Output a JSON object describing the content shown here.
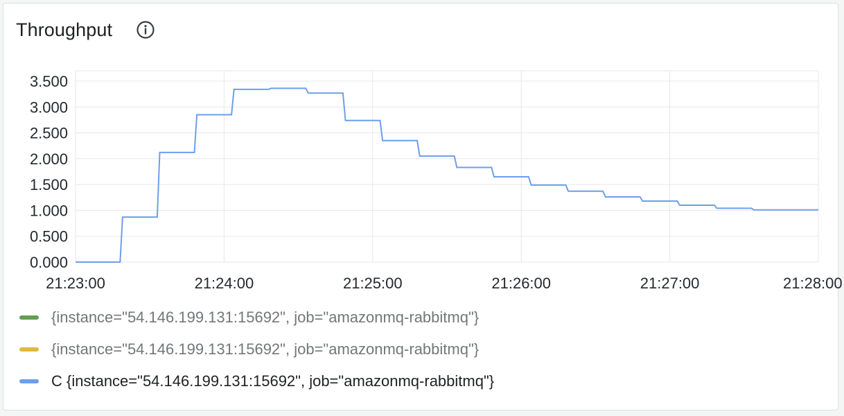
{
  "panel": {
    "title": "Throughput",
    "info_icon": "info-circle-icon"
  },
  "legend": [
    {
      "label": "{instance=\"54.146.199.131:15692\", job=\"amazonmq-rabbitmq\"}",
      "color": "#629e51",
      "active": false
    },
    {
      "label": "{instance=\"54.146.199.131:15692\", job=\"amazonmq-rabbitmq\"}",
      "color": "#e0b93c",
      "active": false
    },
    {
      "label": "C {instance=\"54.146.199.131:15692\", job=\"amazonmq-rabbitmq\"}",
      "color": "#6d9eeb",
      "active": true
    }
  ],
  "chart_data": {
    "type": "line",
    "interpolation": "step",
    "y_ticks": [
      "0.000",
      "0.500",
      "1.000",
      "1.500",
      "2.000",
      "2.500",
      "3.000",
      "3.500"
    ],
    "y_tick_values": [
      0,
      500,
      1000,
      1500,
      2000,
      2500,
      3000,
      3500
    ],
    "ylim": [
      0,
      3500
    ],
    "x_ticks": [
      "21:23:00",
      "21:24:00",
      "21:25:00",
      "21:26:00",
      "21:27:00",
      "21:28:00"
    ],
    "x_tick_values": [
      "21:23:00",
      "21:24:00",
      "21:25:00",
      "21:26:00",
      "21:27:00",
      "21:28:00"
    ],
    "xlim": [
      "21:23:00",
      "21:28:00"
    ],
    "grid": true,
    "legend_position": "bottom",
    "series": [
      {
        "name": "C {instance=\"54.146.199.131:15692\", job=\"amazonmq-rabbitmq\"}",
        "color": "#6d9eeb",
        "points": [
          [
            "21:23:00",
            0
          ],
          [
            "21:23:18",
            0
          ],
          [
            "21:23:19",
            870
          ],
          [
            "21:23:33",
            870
          ],
          [
            "21:23:34",
            2120
          ],
          [
            "21:23:48",
            2120
          ],
          [
            "21:23:49",
            2850
          ],
          [
            "21:24:03",
            2850
          ],
          [
            "21:24:04",
            3340
          ],
          [
            "21:24:18",
            3340
          ],
          [
            "21:24:19",
            3360
          ],
          [
            "21:24:33",
            3360
          ],
          [
            "21:24:34",
            3270
          ],
          [
            "21:24:48",
            3270
          ],
          [
            "21:24:49",
            2740
          ],
          [
            "21:25:03",
            2740
          ],
          [
            "21:25:04",
            2350
          ],
          [
            "21:25:18",
            2350
          ],
          [
            "21:25:19",
            2050
          ],
          [
            "21:25:33",
            2050
          ],
          [
            "21:25:34",
            1830
          ],
          [
            "21:25:48",
            1830
          ],
          [
            "21:25:49",
            1650
          ],
          [
            "21:26:03",
            1650
          ],
          [
            "21:26:04",
            1490
          ],
          [
            "21:26:18",
            1490
          ],
          [
            "21:26:19",
            1370
          ],
          [
            "21:26:33",
            1370
          ],
          [
            "21:26:34",
            1260
          ],
          [
            "21:26:48",
            1260
          ],
          [
            "21:26:49",
            1180
          ],
          [
            "21:27:03",
            1180
          ],
          [
            "21:27:04",
            1100
          ],
          [
            "21:27:18",
            1100
          ],
          [
            "21:27:19",
            1040
          ],
          [
            "21:27:33",
            1040
          ],
          [
            "21:27:34",
            1010
          ],
          [
            "21:28:00",
            1010
          ]
        ]
      }
    ]
  }
}
